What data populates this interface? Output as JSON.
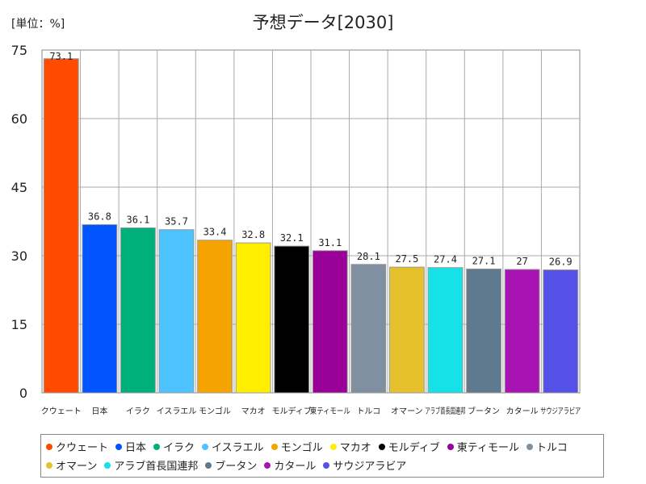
{
  "chart_data": {
    "type": "bar",
    "title": "予想データ[2030]",
    "unit_label": "[単位：%]",
    "ylim": [
      0,
      75
    ],
    "yticks": [
      0,
      15,
      30,
      45,
      60,
      75
    ],
    "grid": true,
    "legend_position": "bottom",
    "categories": [
      "クウェート",
      "日本",
      "イラク",
      "イスラエル",
      "モンゴル",
      "マカオ",
      "モルディブ",
      "東ティモール",
      "トルコ",
      "オマーン",
      "アラブ首長国連邦",
      "ブータン",
      "カタール",
      "サウジアラビア"
    ],
    "values": [
      73.1,
      36.8,
      36.1,
      35.7,
      33.4,
      32.8,
      32.1,
      31.1,
      28.1,
      27.5,
      27.4,
      27.1,
      27,
      26.9
    ],
    "value_labels": [
      "73.1",
      "36.8",
      "36.1",
      "35.7",
      "33.4",
      "32.8",
      "32.1",
      "31.1",
      "28.1",
      "27.5",
      "27.4",
      "27.1",
      "27",
      "26.9"
    ],
    "colors": [
      "#ff4a00",
      "#0055ff",
      "#00b07a",
      "#4dc3ff",
      "#f5a300",
      "#ffee00",
      "#000000",
      "#980098",
      "#8090a0",
      "#e6c12b",
      "#16e1e6",
      "#5f7a8e",
      "#a814b3",
      "#5550e6"
    ]
  }
}
